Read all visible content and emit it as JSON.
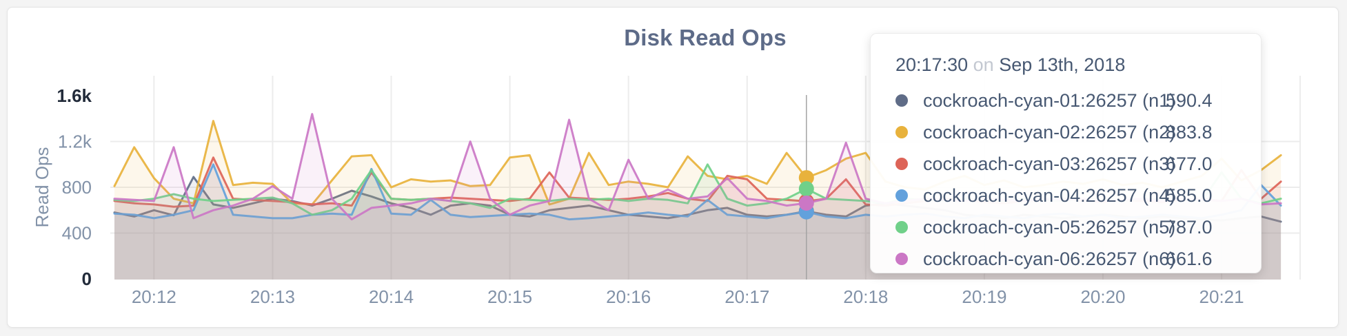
{
  "page": {
    "background": "#f4f4f4",
    "card_background": "#ffffff"
  },
  "chart_data": {
    "type": "area",
    "title": "Disk Read Ops",
    "ylabel": "Read Ops",
    "ylim": [
      0,
      1600
    ],
    "grid": "on",
    "x_start": "20:11:40",
    "x_end": "20:21:30",
    "interval_seconds": 10,
    "x_ticks": [
      "20:12",
      "20:13",
      "20:14",
      "20:15",
      "20:16",
      "20:17",
      "20:18",
      "20:19",
      "20:20",
      "20:21"
    ],
    "y_ticks": [
      {
        "label": "0",
        "value": 0,
        "emphasis": true
      },
      {
        "label": "400",
        "value": 400,
        "emphasis": false
      },
      {
        "label": "800",
        "value": 800,
        "emphasis": false
      },
      {
        "label": "1.2k",
        "value": 1200,
        "emphasis": false
      },
      {
        "label": "1.6k",
        "value": 1600,
        "emphasis": true
      }
    ],
    "hover_index": 35,
    "series": [
      {
        "name": "cockroach-cyan-01:26257 (n1)",
        "color": "#5f6c87",
        "values": [
          580,
          545,
          600,
          555,
          890,
          650,
          620,
          660,
          700,
          680,
          640,
          700,
          770,
          720,
          660,
          620,
          560,
          640,
          660,
          640,
          560,
          545,
          600,
          620,
          640,
          600,
          560,
          545,
          530,
          560,
          600,
          620,
          560,
          545,
          560,
          590.4,
          560,
          545,
          640,
          660,
          640,
          620,
          600,
          560,
          545,
          530,
          560,
          545,
          530,
          545,
          560,
          545,
          530,
          545,
          530,
          520,
          510,
          530,
          545,
          500
        ]
      },
      {
        "name": "cockroach-cyan-02:26257 (n2)",
        "color": "#e8b23c",
        "values": [
          810,
          1150,
          880,
          700,
          660,
          1380,
          820,
          840,
          830,
          660,
          650,
          860,
          1070,
          1080,
          800,
          870,
          850,
          860,
          810,
          820,
          1060,
          1080,
          650,
          700,
          1100,
          820,
          850,
          830,
          800,
          1070,
          900,
          870,
          900,
          830,
          1100,
          883.8,
          950,
          1050,
          1100,
          850,
          800,
          780,
          850,
          900,
          820,
          860,
          800,
          820,
          850,
          830,
          870,
          820,
          840,
          800,
          850,
          900,
          1050,
          860,
          950,
          1080
        ]
      },
      {
        "name": "cockroach-cyan-03:26257 (n3)",
        "color": "#dd6458",
        "values": [
          680,
          660,
          650,
          630,
          640,
          1060,
          700,
          690,
          680,
          670,
          650,
          660,
          640,
          930,
          700,
          690,
          700,
          710,
          700,
          690,
          680,
          700,
          930,
          710,
          700,
          690,
          700,
          720,
          750,
          700,
          680,
          900,
          870,
          700,
          690,
          677,
          700,
          870,
          650,
          640,
          660,
          680,
          700,
          690,
          670,
          660,
          680,
          690,
          700,
          680,
          670,
          690,
          680,
          670,
          690,
          700,
          680,
          950,
          700,
          850
        ]
      },
      {
        "name": "cockroach-cyan-04:26257 (n4)",
        "color": "#62a1dc",
        "values": [
          570,
          560,
          530,
          560,
          600,
          1000,
          560,
          545,
          530,
          530,
          560,
          570,
          560,
          960,
          570,
          560,
          690,
          560,
          540,
          550,
          560,
          570,
          560,
          520,
          530,
          545,
          560,
          580,
          560,
          545,
          690,
          560,
          545,
          530,
          560,
          585,
          545,
          530,
          560,
          545,
          560,
          570,
          545,
          530,
          560,
          545,
          530,
          560,
          570,
          545,
          560,
          530,
          545,
          560,
          545,
          530,
          560,
          600,
          820,
          640
        ]
      },
      {
        "name": "cockroach-cyan-05:26257 (n5)",
        "color": "#70d089",
        "values": [
          690,
          680,
          700,
          740,
          700,
          680,
          690,
          700,
          710,
          660,
          560,
          600,
          700,
          950,
          700,
          690,
          700,
          680,
          660,
          620,
          700,
          690,
          680,
          700,
          690,
          700,
          680,
          700,
          690,
          660,
          1000,
          700,
          640,
          660,
          700,
          787,
          700,
          690,
          680,
          660,
          700,
          690,
          680,
          700,
          690,
          680,
          700,
          690,
          680,
          700,
          690,
          680,
          700,
          690,
          700,
          680,
          930,
          700,
          660,
          700
        ]
      },
      {
        "name": "cockroach-cyan-06:26257 (n6)",
        "color": "#cb77c5",
        "values": [
          700,
          690,
          680,
          1150,
          530,
          600,
          640,
          700,
          810,
          700,
          1440,
          700,
          520,
          620,
          640,
          660,
          700,
          680,
          1200,
          700,
          560,
          640,
          680,
          1390,
          700,
          600,
          1040,
          700,
          780,
          700,
          720,
          880,
          700,
          680,
          640,
          661.6,
          700,
          1190,
          700,
          660,
          680,
          700,
          690,
          680,
          700,
          690,
          680,
          700,
          690,
          700,
          680,
          690,
          700,
          680,
          700,
          690,
          680,
          700,
          650,
          660
        ]
      }
    ]
  },
  "tooltip": {
    "time": "20:17:30",
    "on_word": "on",
    "date": "Sep 13th, 2018",
    "rows": [
      {
        "label": "cockroach-cyan-01:26257 (n1)",
        "value": "590.4",
        "color": "#5f6c87"
      },
      {
        "label": "cockroach-cyan-02:26257 (n2)",
        "value": "883.8",
        "color": "#e8b23c"
      },
      {
        "label": "cockroach-cyan-03:26257 (n3)",
        "value": "677.0",
        "color": "#dd6458"
      },
      {
        "label": "cockroach-cyan-04:26257 (n4)",
        "value": "585.0",
        "color": "#62a1dc"
      },
      {
        "label": "cockroach-cyan-05:26257 (n5)",
        "value": "787.0",
        "color": "#70d089"
      },
      {
        "label": "cockroach-cyan-06:26257 (n6)",
        "value": "661.6",
        "color": "#cb77c5"
      }
    ]
  }
}
